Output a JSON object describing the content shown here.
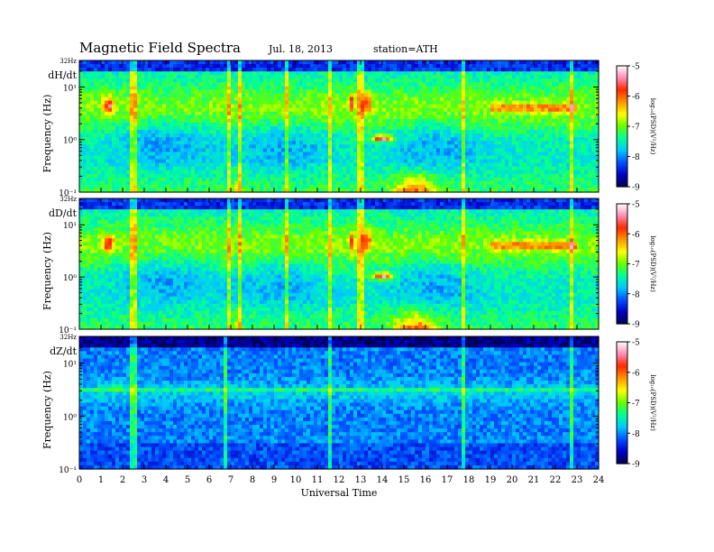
{
  "header": {
    "title": "Magnetic  Field  Spectra",
    "date": "Jul.  18, 2013",
    "station": "station=ATH"
  },
  "chart_data": [
    {
      "type": "heatmap",
      "panel_label": "dH/dt",
      "ylabel": "Frequency  (Hz)",
      "top_label": "32Hz",
      "x": [
        0,
        1,
        2,
        3,
        4,
        5,
        6,
        7,
        8,
        9,
        10,
        11,
        12,
        13,
        14,
        15,
        16,
        17,
        18,
        19,
        20,
        21,
        22,
        23,
        24
      ],
      "xlim": [
        0,
        24
      ],
      "ylim": [
        0.1,
        32
      ],
      "yscale": "log",
      "yticks": [
        "10⁻¹",
        "10⁰",
        "10¹"
      ],
      "colorbar": {
        "ticks": [
          "-5",
          "-6",
          "-7",
          "-8",
          "-9"
        ],
        "range": [
          -9,
          -5
        ],
        "label": "log₁₀(PSD)(V²/Hz)"
      }
    },
    {
      "type": "heatmap",
      "panel_label": "dD/dt",
      "ylabel": "Frequency  (Hz)",
      "top_label": "32Hz",
      "x": [
        0,
        1,
        2,
        3,
        4,
        5,
        6,
        7,
        8,
        9,
        10,
        11,
        12,
        13,
        14,
        15,
        16,
        17,
        18,
        19,
        20,
        21,
        22,
        23,
        24
      ],
      "xlim": [
        0,
        24
      ],
      "ylim": [
        0.1,
        32
      ],
      "yscale": "log",
      "yticks": [
        "10⁻¹",
        "10⁰",
        "10¹"
      ],
      "colorbar": {
        "ticks": [
          "-5",
          "-6",
          "-7",
          "-8",
          "-9"
        ],
        "range": [
          -9,
          -5
        ],
        "label": "log₁₀(PSD)(V²/Hz)"
      }
    },
    {
      "type": "heatmap",
      "panel_label": "dZ/dt",
      "ylabel": "Frequency  (Hz)",
      "top_label": "32Hz",
      "x": [
        0,
        1,
        2,
        3,
        4,
        5,
        6,
        7,
        8,
        9,
        10,
        11,
        12,
        13,
        14,
        15,
        16,
        17,
        18,
        19,
        20,
        21,
        22,
        23,
        24
      ],
      "xlim": [
        0,
        24
      ],
      "ylim": [
        0.1,
        32
      ],
      "yscale": "log",
      "yticks": [
        "10⁻¹",
        "10⁰",
        "10¹"
      ],
      "colorbar": {
        "ticks": [
          "-5",
          "-6",
          "-7",
          "-8",
          "-9"
        ],
        "range": [
          -9,
          -5
        ],
        "label": "log₁₀(PSD)(V²/Hz)"
      }
    }
  ],
  "xaxis": {
    "label": "Universal  Time",
    "ticks": [
      "0",
      "1",
      "2",
      "3",
      "4",
      "5",
      "6",
      "7",
      "8",
      "9",
      "10",
      "11",
      "12",
      "13",
      "14",
      "15",
      "16",
      "17",
      "18",
      "19",
      "20",
      "21",
      "22",
      "23",
      "24"
    ]
  },
  "colors": {
    "colormap": [
      "#000050",
      "#0000c8",
      "#0050ff",
      "#00c8ff",
      "#00ff9a",
      "#64ff00",
      "#ffff00",
      "#ff9600",
      "#ff2800",
      "#ff8cb4",
      "#ffffff"
    ]
  }
}
